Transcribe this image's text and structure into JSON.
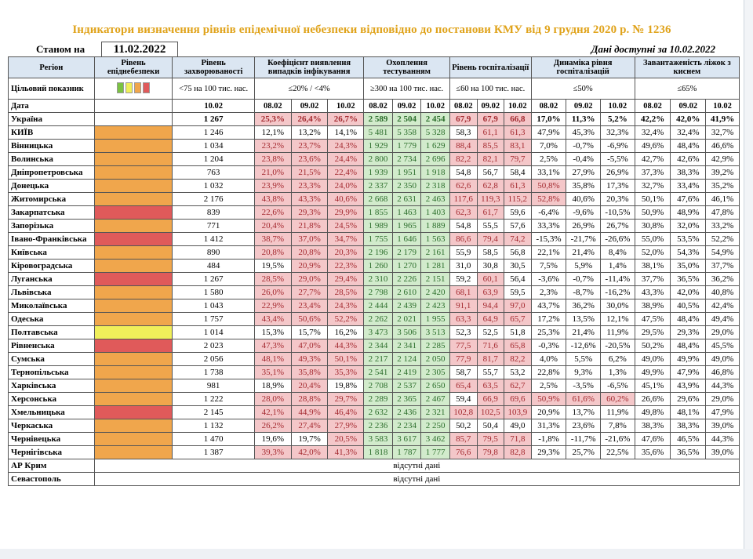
{
  "title": "Індикатори визначення рівнів епідемічної небезпеки відповідно до постанови КМУ від 9 грудня 2020 р. № 1236",
  "status_label": "Станом на",
  "status_date": "11.02.2022",
  "data_available": "Дані доступні за 10.02.2022",
  "headers": {
    "region": "Регіон",
    "level": "Рівень епіднебезпеки",
    "morbidity": "Рівень захворюваності",
    "detection": "Коефіцієнт виявлення випадків інфікування",
    "testing": "Охоплення тестуванням",
    "hospitalization": "Рівень госпіталізації",
    "dynamics": "Динаміка рівня госпіталізацій",
    "beds": "Завантаженість ліжок з киснем"
  },
  "target": {
    "label": "Цільовий показник",
    "level_colors": [
      "#7bc242",
      "#f0ef5a",
      "#f0a64c",
      "#e05a5a"
    ],
    "morbidity": "<75 на 100 тис. нас.",
    "detection": "≤20% / <4%",
    "testing": "≥300 на 100 тис. нас.",
    "hospitalization": "≤60 на 100 тис. нас.",
    "dynamics": "≤50%",
    "beds": "≤65%"
  },
  "date_row": {
    "label": "Дата",
    "morbidity": "10.02",
    "d1": "08.02",
    "d2": "09.02",
    "d3": "10.02"
  },
  "rows": [
    {
      "name": "Україна",
      "level": "none",
      "morb": "1 267",
      "det": [
        "25,3%",
        "26,4%",
        "26,7%"
      ],
      "test": [
        "2 589",
        "2 504",
        "2 454"
      ],
      "hosp": [
        "67,9",
        "67,9",
        "66,8"
      ],
      "dyn": [
        "17,0%",
        "11,3%",
        "5,2%"
      ],
      "beds": [
        "42,2%",
        "42,0%",
        "41,9%"
      ]
    },
    {
      "name": "КИЇВ",
      "level": "orange",
      "morb": "1 246",
      "det": [
        "12,1%",
        "13,2%",
        "14,1%"
      ],
      "test": [
        "5 481",
        "5 358",
        "5 328"
      ],
      "hosp": [
        "58,3",
        "61,1",
        "61,3"
      ],
      "dyn": [
        "47,9%",
        "45,3%",
        "32,3%"
      ],
      "beds": [
        "32,4%",
        "32,4%",
        "32,7%"
      ]
    },
    {
      "name": "Вінницька",
      "level": "orange",
      "morb": "1 034",
      "det": [
        "23,2%",
        "23,7%",
        "24,3%"
      ],
      "test": [
        "1 929",
        "1 779",
        "1 629"
      ],
      "hosp": [
        "88,4",
        "85,5",
        "83,1"
      ],
      "dyn": [
        "7,0%",
        "-0,7%",
        "-6,9%"
      ],
      "beds": [
        "49,6%",
        "48,4%",
        "46,6%"
      ]
    },
    {
      "name": "Волинська",
      "level": "orange",
      "morb": "1 204",
      "det": [
        "23,8%",
        "23,6%",
        "24,4%"
      ],
      "test": [
        "2 800",
        "2 734",
        "2 696"
      ],
      "hosp": [
        "82,2",
        "82,1",
        "79,7"
      ],
      "dyn": [
        "2,5%",
        "-0,4%",
        "-5,5%"
      ],
      "beds": [
        "42,7%",
        "42,6%",
        "42,9%"
      ]
    },
    {
      "name": "Дніпропетровська",
      "level": "orange",
      "morb": "763",
      "det": [
        "21,0%",
        "21,5%",
        "22,4%"
      ],
      "test": [
        "1 939",
        "1 951",
        "1 918"
      ],
      "hosp": [
        "54,8",
        "56,7",
        "58,4"
      ],
      "dyn": [
        "33,1%",
        "27,9%",
        "26,9%"
      ],
      "beds": [
        "37,3%",
        "38,3%",
        "39,2%"
      ]
    },
    {
      "name": "Донецька",
      "level": "orange",
      "morb": "1 032",
      "det": [
        "23,9%",
        "23,3%",
        "24,0%"
      ],
      "test": [
        "2 337",
        "2 350",
        "2 318"
      ],
      "hosp": [
        "62,6",
        "62,8",
        "61,3"
      ],
      "dyn": [
        "50,8%",
        "35,8%",
        "17,3%"
      ],
      "beds": [
        "32,7%",
        "33,4%",
        "35,2%"
      ]
    },
    {
      "name": "Житомирська",
      "level": "orange",
      "morb": "2 176",
      "det": [
        "43,8%",
        "43,3%",
        "40,6%"
      ],
      "test": [
        "2 668",
        "2 631",
        "2 463"
      ],
      "hosp": [
        "117,6",
        "119,3",
        "115,2"
      ],
      "dyn": [
        "52,8%",
        "40,6%",
        "20,3%"
      ],
      "beds": [
        "50,1%",
        "47,6%",
        "46,1%"
      ]
    },
    {
      "name": "Закарпатська",
      "level": "red",
      "morb": "839",
      "det": [
        "22,6%",
        "29,3%",
        "29,9%"
      ],
      "test": [
        "1 855",
        "1 463",
        "1 403"
      ],
      "hosp": [
        "62,3",
        "61,7",
        "59,6"
      ],
      "dyn": [
        "-6,4%",
        "-9,6%",
        "-10,5%"
      ],
      "beds": [
        "50,9%",
        "48,9%",
        "47,8%"
      ]
    },
    {
      "name": "Запорізька",
      "level": "orange",
      "morb": "771",
      "det": [
        "20,4%",
        "21,8%",
        "24,5%"
      ],
      "test": [
        "1 989",
        "1 965",
        "1 889"
      ],
      "hosp": [
        "54,8",
        "55,5",
        "57,6"
      ],
      "dyn": [
        "33,3%",
        "26,9%",
        "26,7%"
      ],
      "beds": [
        "30,8%",
        "32,0%",
        "33,2%"
      ]
    },
    {
      "name": "Івано-Франківська",
      "level": "red",
      "morb": "1 412",
      "det": [
        "38,7%",
        "37,0%",
        "34,7%"
      ],
      "test": [
        "1 755",
        "1 646",
        "1 563"
      ],
      "hosp": [
        "86,6",
        "79,4",
        "74,2"
      ],
      "dyn": [
        "-15,3%",
        "-21,7%",
        "-26,6%"
      ],
      "beds": [
        "55,0%",
        "53,5%",
        "52,2%"
      ]
    },
    {
      "name": "Київська",
      "level": "orange",
      "morb": "890",
      "det": [
        "20,8%",
        "20,8%",
        "20,3%"
      ],
      "test": [
        "2 196",
        "2 179",
        "2 161"
      ],
      "hosp": [
        "55,9",
        "58,5",
        "56,8"
      ],
      "dyn": [
        "22,1%",
        "21,4%",
        "8,4%"
      ],
      "beds": [
        "52,0%",
        "54,3%",
        "54,9%"
      ]
    },
    {
      "name": "Кіровоградська",
      "level": "orange",
      "morb": "484",
      "det": [
        "19,5%",
        "20,9%",
        "22,3%"
      ],
      "test": [
        "1 260",
        "1 270",
        "1 281"
      ],
      "hosp": [
        "31,0",
        "30,8",
        "30,5"
      ],
      "dyn": [
        "7,5%",
        "5,9%",
        "1,4%"
      ],
      "beds": [
        "38,1%",
        "35,0%",
        "37,7%"
      ]
    },
    {
      "name": "Луганська",
      "level": "red",
      "morb": "1 267",
      "det": [
        "28,5%",
        "29,0%",
        "29,4%"
      ],
      "test": [
        "2 310",
        "2 226",
        "2 151"
      ],
      "hosp": [
        "59,2",
        "60,1",
        "56,4"
      ],
      "dyn": [
        "-3,6%",
        "-0,7%",
        "-11,4%"
      ],
      "beds": [
        "37,7%",
        "36,5%",
        "36,2%"
      ]
    },
    {
      "name": "Львівська",
      "level": "orange",
      "morb": "1 580",
      "det": [
        "26,0%",
        "27,7%",
        "28,5%"
      ],
      "test": [
        "2 798",
        "2 610",
        "2 420"
      ],
      "hosp": [
        "68,1",
        "63,9",
        "59,5"
      ],
      "dyn": [
        "2,3%",
        "-8,7%",
        "-16,2%"
      ],
      "beds": [
        "43,3%",
        "42,0%",
        "40,8%"
      ]
    },
    {
      "name": "Миколаївська",
      "level": "orange",
      "morb": "1 043",
      "det": [
        "22,9%",
        "23,4%",
        "24,3%"
      ],
      "test": [
        "2 444",
        "2 439",
        "2 423"
      ],
      "hosp": [
        "91,1",
        "94,4",
        "97,0"
      ],
      "dyn": [
        "43,7%",
        "36,2%",
        "30,0%"
      ],
      "beds": [
        "38,9%",
        "40,5%",
        "42,4%"
      ]
    },
    {
      "name": "Одеська",
      "level": "orange",
      "morb": "1 757",
      "det": [
        "43,4%",
        "50,6%",
        "52,2%"
      ],
      "test": [
        "2 262",
        "2 021",
        "1 955"
      ],
      "hosp": [
        "63,3",
        "64,9",
        "65,7"
      ],
      "dyn": [
        "17,2%",
        "13,5%",
        "12,1%"
      ],
      "beds": [
        "47,5%",
        "48,4%",
        "49,4%"
      ]
    },
    {
      "name": "Полтавська",
      "level": "yellow",
      "morb": "1 014",
      "det": [
        "15,3%",
        "15,7%",
        "16,2%"
      ],
      "test": [
        "3 473",
        "3 506",
        "3 513"
      ],
      "hosp": [
        "52,3",
        "52,5",
        "51,8"
      ],
      "dyn": [
        "25,3%",
        "21,4%",
        "11,9%"
      ],
      "beds": [
        "29,5%",
        "29,3%",
        "29,0%"
      ]
    },
    {
      "name": "Рівненська",
      "level": "red",
      "morb": "2 023",
      "det": [
        "47,3%",
        "47,0%",
        "44,3%"
      ],
      "test": [
        "2 344",
        "2 341",
        "2 285"
      ],
      "hosp": [
        "77,5",
        "71,6",
        "65,8"
      ],
      "dyn": [
        "-0,3%",
        "-12,6%",
        "-20,5%"
      ],
      "beds": [
        "50,2%",
        "48,4%",
        "45,5%"
      ]
    },
    {
      "name": "Сумська",
      "level": "orange",
      "morb": "2 056",
      "det": [
        "48,1%",
        "49,3%",
        "50,1%"
      ],
      "test": [
        "2 217",
        "2 124",
        "2 050"
      ],
      "hosp": [
        "77,9",
        "81,7",
        "82,2"
      ],
      "dyn": [
        "4,0%",
        "5,5%",
        "6,2%"
      ],
      "beds": [
        "49,0%",
        "49,9%",
        "49,0%"
      ]
    },
    {
      "name": "Тернопільська",
      "level": "orange",
      "morb": "1 738",
      "det": [
        "35,1%",
        "35,8%",
        "35,3%"
      ],
      "test": [
        "2 541",
        "2 419",
        "2 305"
      ],
      "hosp": [
        "58,7",
        "55,7",
        "53,2"
      ],
      "dyn": [
        "22,8%",
        "9,3%",
        "1,3%"
      ],
      "beds": [
        "49,9%",
        "47,9%",
        "46,8%"
      ]
    },
    {
      "name": "Харківська",
      "level": "orange",
      "morb": "981",
      "det": [
        "18,9%",
        "20,4%",
        "19,8%"
      ],
      "test": [
        "2 708",
        "2 537",
        "2 650"
      ],
      "hosp": [
        "65,4",
        "63,5",
        "62,7"
      ],
      "dyn": [
        "2,5%",
        "-3,5%",
        "-6,5%"
      ],
      "beds": [
        "45,1%",
        "43,9%",
        "44,3%"
      ]
    },
    {
      "name": "Херсонська",
      "level": "orange",
      "morb": "1 222",
      "det": [
        "28,0%",
        "28,8%",
        "29,7%"
      ],
      "test": [
        "2 289",
        "2 365",
        "2 467"
      ],
      "hosp": [
        "59,4",
        "66,9",
        "69,6"
      ],
      "dyn": [
        "50,9%",
        "61,6%",
        "60,2%"
      ],
      "beds": [
        "26,6%",
        "29,6%",
        "29,0%"
      ]
    },
    {
      "name": "Хмельницька",
      "level": "red",
      "morb": "2 145",
      "det": [
        "42,1%",
        "44,9%",
        "46,4%"
      ],
      "test": [
        "2 632",
        "2 436",
        "2 321"
      ],
      "hosp": [
        "102,8",
        "102,5",
        "103,9"
      ],
      "dyn": [
        "20,9%",
        "13,7%",
        "11,9%"
      ],
      "beds": [
        "49,8%",
        "48,1%",
        "47,9%"
      ]
    },
    {
      "name": "Черкаська",
      "level": "orange",
      "morb": "1 132",
      "det": [
        "26,2%",
        "27,4%",
        "27,9%"
      ],
      "test": [
        "2 236",
        "2 234",
        "2 250"
      ],
      "hosp": [
        "50,2",
        "50,4",
        "49,0"
      ],
      "dyn": [
        "31,3%",
        "23,6%",
        "7,8%"
      ],
      "beds": [
        "38,3%",
        "38,3%",
        "39,0%"
      ]
    },
    {
      "name": "Чернівецька",
      "level": "orange",
      "morb": "1 470",
      "det": [
        "19,6%",
        "19,7%",
        "20,5%"
      ],
      "test": [
        "3 583",
        "3 617",
        "3 462"
      ],
      "hosp": [
        "85,7",
        "79,5",
        "71,8"
      ],
      "dyn": [
        "-1,8%",
        "-11,7%",
        "-21,6%"
      ],
      "beds": [
        "47,6%",
        "46,5%",
        "44,3%"
      ]
    },
    {
      "name": "Чернігівська",
      "level": "orange",
      "morb": "1 387",
      "det": [
        "39,3%",
        "42,0%",
        "41,3%"
      ],
      "test": [
        "1 818",
        "1 787",
        "1 777"
      ],
      "hosp": [
        "76,6",
        "79,8",
        "82,8"
      ],
      "dyn": [
        "29,3%",
        "25,7%",
        "22,5%"
      ],
      "beds": [
        "35,6%",
        "36,5%",
        "39,0%"
      ]
    }
  ],
  "absent": [
    {
      "name": "АР Крим",
      "text": "відсутні дані"
    },
    {
      "name": "Севастополь",
      "text": "відсутні дані"
    }
  ]
}
